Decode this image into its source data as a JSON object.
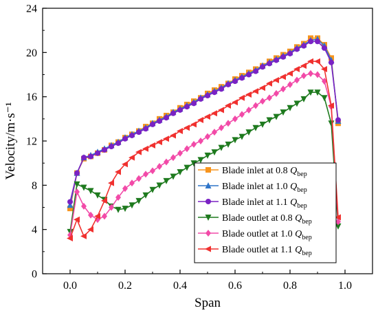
{
  "chart_data": {
    "type": "line",
    "xlabel": "Span",
    "ylabel": "Velocity/m·s⁻¹",
    "xlim": [
      -0.1,
      1.1
    ],
    "ylim": [
      0,
      24
    ],
    "xticks": [
      0.0,
      0.2,
      0.4,
      0.6,
      0.8,
      1.0
    ],
    "xtick_labels": [
      "0.0",
      "0.2",
      "0.4",
      "0.6",
      "0.8",
      "1.0"
    ],
    "yticks": [
      0,
      4,
      8,
      12,
      16,
      20,
      24
    ],
    "ytick_labels": [
      "0",
      "4",
      "8",
      "12",
      "16",
      "20",
      "24"
    ],
    "grid": false,
    "legend_position": "lower-right",
    "series": [
      {
        "name": "Blade inlet at 0.8 Q",
        "name_main": "Blade inlet at 0.8 ",
        "name_q": "Q",
        "name_sub": "bep",
        "color": "#f7941d",
        "marker": "square",
        "x": [
          0.0,
          0.025,
          0.05,
          0.075,
          0.1,
          0.125,
          0.15,
          0.175,
          0.2,
          0.225,
          0.25,
          0.275,
          0.3,
          0.325,
          0.35,
          0.375,
          0.4,
          0.425,
          0.45,
          0.475,
          0.5,
          0.525,
          0.55,
          0.575,
          0.6,
          0.625,
          0.65,
          0.675,
          0.7,
          0.725,
          0.75,
          0.775,
          0.8,
          0.825,
          0.85,
          0.875,
          0.9,
          0.925,
          0.95,
          0.975
        ],
        "values": [
          5.9,
          9.1,
          10.4,
          10.6,
          10.9,
          11.2,
          11.6,
          11.9,
          12.3,
          12.6,
          12.9,
          13.3,
          13.6,
          14.0,
          14.3,
          14.6,
          15.0,
          15.3,
          15.6,
          15.9,
          16.3,
          16.6,
          16.9,
          17.2,
          17.6,
          17.9,
          18.2,
          18.5,
          18.8,
          19.2,
          19.5,
          19.8,
          20.1,
          20.5,
          20.8,
          21.3,
          21.3,
          20.7,
          19.5,
          13.6
        ]
      },
      {
        "name": "Blade inlet at 1.0 Q",
        "name_main": "Blade inlet at 1.0 ",
        "name_q": "Q",
        "name_sub": "bep",
        "color": "#2e75c9",
        "marker": "triangle-up",
        "x": [
          0.0,
          0.025,
          0.05,
          0.075,
          0.1,
          0.125,
          0.15,
          0.175,
          0.2,
          0.225,
          0.25,
          0.275,
          0.3,
          0.325,
          0.35,
          0.375,
          0.4,
          0.425,
          0.45,
          0.475,
          0.5,
          0.525,
          0.55,
          0.575,
          0.6,
          0.625,
          0.65,
          0.675,
          0.7,
          0.725,
          0.75,
          0.775,
          0.8,
          0.825,
          0.85,
          0.875,
          0.9,
          0.925,
          0.95,
          0.975
        ],
        "values": [
          6.2,
          9.1,
          10.5,
          10.7,
          11.0,
          11.3,
          11.6,
          11.9,
          12.3,
          12.6,
          12.9,
          13.2,
          13.6,
          13.9,
          14.2,
          14.6,
          14.9,
          15.2,
          15.5,
          15.9,
          16.2,
          16.5,
          16.8,
          17.2,
          17.5,
          17.8,
          18.1,
          18.4,
          18.8,
          19.1,
          19.4,
          19.7,
          20.0,
          20.4,
          20.7,
          21.1,
          21.2,
          20.6,
          19.3,
          13.8
        ]
      },
      {
        "name": "Blade inlet at 1.1 Q",
        "name_main": "Blade inlet at 1.1 ",
        "name_q": "Q",
        "name_sub": "bep",
        "color": "#7a22c4",
        "marker": "circle",
        "x": [
          0.0,
          0.025,
          0.05,
          0.075,
          0.1,
          0.125,
          0.15,
          0.175,
          0.2,
          0.225,
          0.25,
          0.275,
          0.3,
          0.325,
          0.35,
          0.375,
          0.4,
          0.425,
          0.45,
          0.475,
          0.5,
          0.525,
          0.55,
          0.575,
          0.6,
          0.625,
          0.65,
          0.675,
          0.7,
          0.725,
          0.75,
          0.775,
          0.8,
          0.825,
          0.85,
          0.875,
          0.9,
          0.925,
          0.95,
          0.975
        ],
        "values": [
          6.5,
          9.1,
          10.5,
          10.6,
          10.9,
          11.2,
          11.5,
          11.8,
          12.2,
          12.5,
          12.8,
          13.1,
          13.5,
          13.8,
          14.1,
          14.5,
          14.8,
          15.1,
          15.4,
          15.8,
          16.1,
          16.4,
          16.7,
          17.1,
          17.4,
          17.7,
          18.0,
          18.3,
          18.7,
          19.0,
          19.3,
          19.6,
          19.9,
          20.3,
          20.6,
          21.0,
          21.0,
          20.4,
          19.1,
          13.9
        ]
      },
      {
        "name": "Blade outlet at 0.8 Q",
        "name_main": "Blade outlet at 0.8 ",
        "name_q": "Q",
        "name_sub": "bep",
        "color": "#1e7a1e",
        "marker": "triangle-down",
        "x": [
          0.0,
          0.025,
          0.05,
          0.075,
          0.1,
          0.125,
          0.15,
          0.175,
          0.2,
          0.225,
          0.25,
          0.275,
          0.3,
          0.325,
          0.35,
          0.375,
          0.4,
          0.425,
          0.45,
          0.475,
          0.5,
          0.525,
          0.55,
          0.575,
          0.6,
          0.625,
          0.65,
          0.675,
          0.7,
          0.725,
          0.75,
          0.775,
          0.8,
          0.825,
          0.85,
          0.875,
          0.9,
          0.925,
          0.95,
          0.975
        ],
        "values": [
          3.8,
          8.1,
          7.8,
          7.5,
          7.1,
          6.7,
          6.1,
          5.8,
          5.9,
          6.2,
          6.6,
          7.1,
          7.6,
          8.0,
          8.4,
          8.8,
          9.2,
          9.6,
          10.0,
          10.3,
          10.7,
          11.0,
          11.4,
          11.7,
          12.1,
          12.4,
          12.8,
          13.2,
          13.5,
          13.9,
          14.2,
          14.6,
          15.0,
          15.4,
          15.8,
          16.4,
          16.4,
          15.9,
          13.6,
          4.3
        ]
      },
      {
        "name": "Blade outlet at 1.0 Q",
        "name_main": "Blade outlet at 1.0 ",
        "name_q": "Q",
        "name_sub": "bep",
        "color": "#f24aa8",
        "marker": "diamond",
        "x": [
          0.0,
          0.025,
          0.05,
          0.075,
          0.1,
          0.125,
          0.15,
          0.175,
          0.2,
          0.225,
          0.25,
          0.275,
          0.3,
          0.325,
          0.35,
          0.375,
          0.4,
          0.425,
          0.45,
          0.475,
          0.5,
          0.525,
          0.55,
          0.575,
          0.6,
          0.625,
          0.65,
          0.675,
          0.7,
          0.725,
          0.75,
          0.775,
          0.8,
          0.825,
          0.85,
          0.875,
          0.9,
          0.925,
          0.95,
          0.975
        ],
        "values": [
          3.5,
          7.4,
          6.1,
          5.3,
          4.9,
          5.2,
          6.0,
          6.9,
          7.7,
          8.2,
          8.6,
          9.0,
          9.3,
          9.7,
          10.1,
          10.5,
          10.9,
          11.3,
          11.7,
          12.0,
          12.4,
          12.8,
          13.2,
          13.6,
          14.0,
          14.4,
          14.8,
          15.2,
          15.6,
          15.9,
          16.3,
          16.7,
          17.1,
          17.5,
          17.9,
          18.1,
          18.0,
          17.4,
          15.1,
          4.7
        ]
      },
      {
        "name": "Blade outlet at 1.1 Q",
        "name_main": "Blade outlet at 1.1 ",
        "name_q": "Q",
        "name_sub": "bep",
        "color": "#f0312f",
        "marker": "triangle-left",
        "x": [
          0.0,
          0.025,
          0.05,
          0.075,
          0.1,
          0.125,
          0.15,
          0.175,
          0.2,
          0.225,
          0.25,
          0.275,
          0.3,
          0.325,
          0.35,
          0.375,
          0.4,
          0.425,
          0.45,
          0.475,
          0.5,
          0.525,
          0.55,
          0.575,
          0.6,
          0.625,
          0.65,
          0.675,
          0.7,
          0.725,
          0.75,
          0.775,
          0.8,
          0.825,
          0.85,
          0.875,
          0.9,
          0.925,
          0.95,
          0.975
        ],
        "values": [
          3.2,
          4.9,
          3.4,
          4.0,
          5.2,
          6.6,
          8.2,
          9.2,
          9.9,
          10.5,
          11.0,
          11.3,
          11.6,
          11.9,
          12.2,
          12.5,
          12.9,
          13.2,
          13.5,
          13.9,
          14.2,
          14.5,
          14.8,
          15.2,
          15.5,
          15.9,
          16.2,
          16.5,
          16.8,
          17.2,
          17.5,
          17.8,
          18.1,
          18.5,
          18.8,
          19.2,
          19.2,
          18.5,
          15.2,
          5.1
        ]
      }
    ]
  }
}
